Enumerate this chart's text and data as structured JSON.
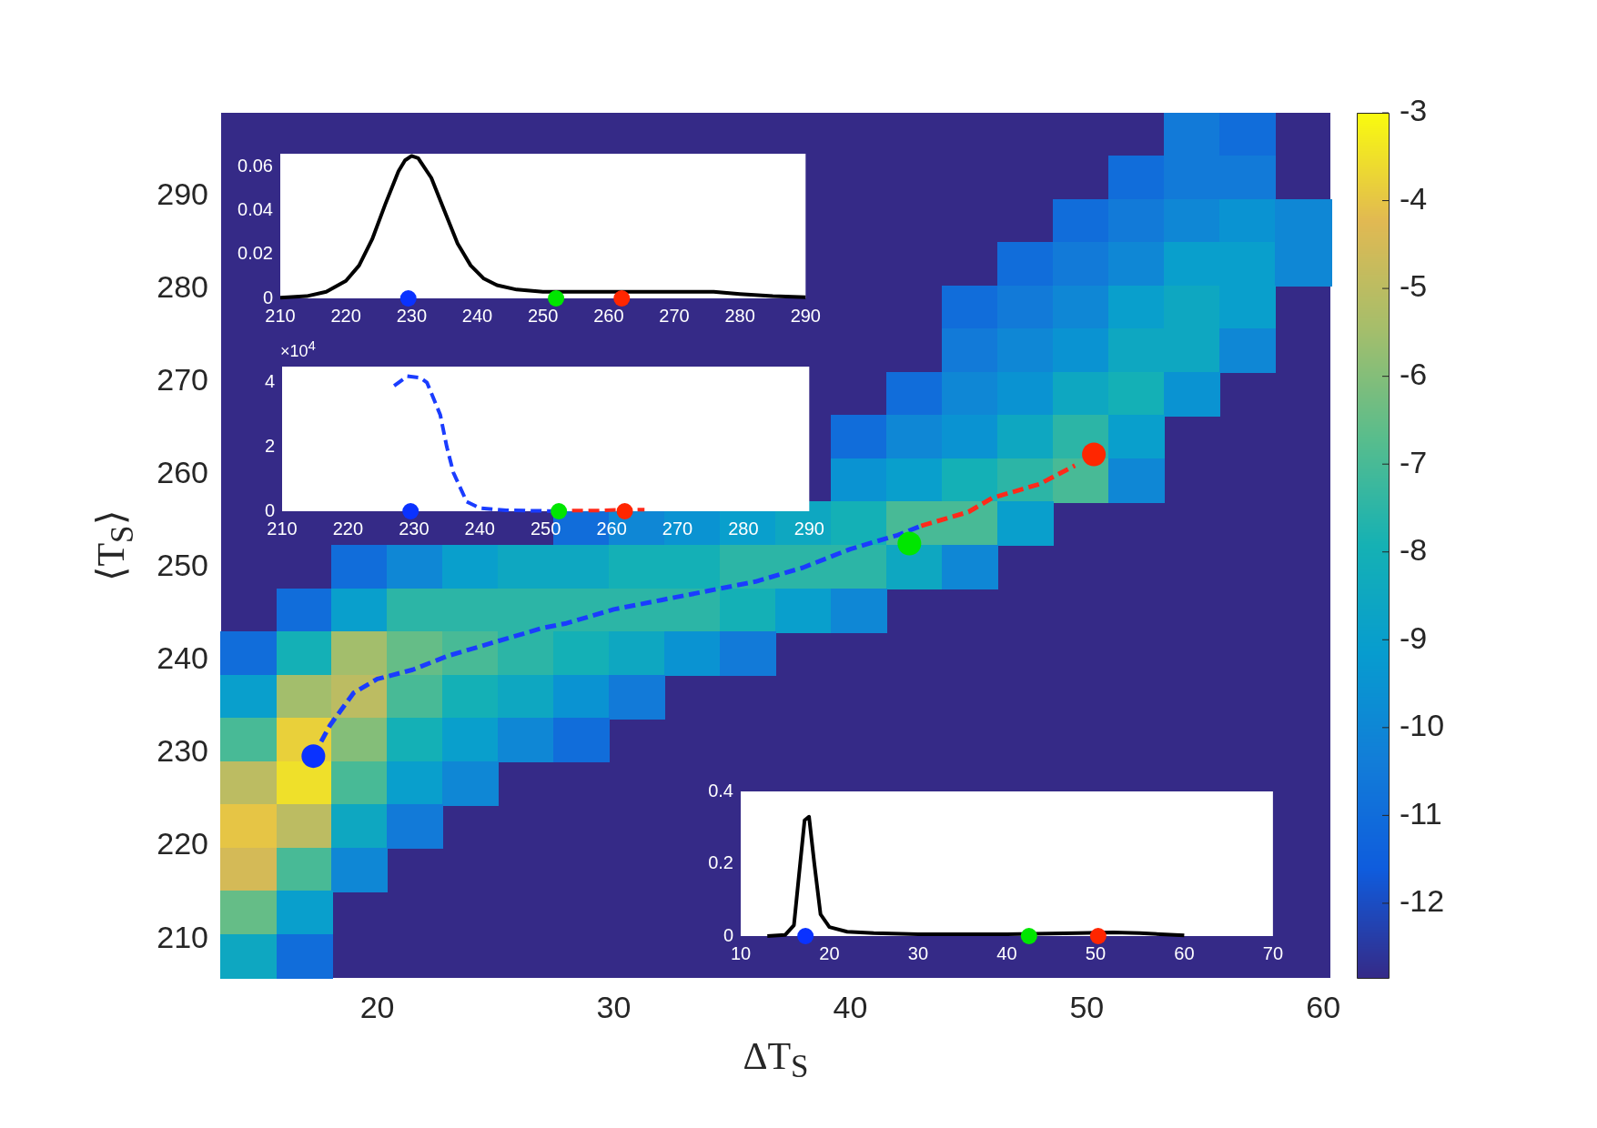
{
  "chart_data": [
    {
      "type": "heatmap",
      "xlabel": "ΔT$_{S}$",
      "ylabel": "⟨T$_{S}$⟩",
      "x": [
        14.57,
        16.92,
        19.26,
        21.61,
        23.95,
        26.3,
        28.64,
        30.99,
        33.33,
        35.68,
        38.02,
        40.37,
        42.71,
        45.06,
        47.4,
        49.75,
        52.09,
        54.44,
        56.78,
        59.13
      ],
      "y": [
        296.67,
        292.01,
        287.35,
        282.69,
        278.03,
        273.37,
        268.71,
        264.05,
        259.39,
        254.73,
        250.07,
        245.41,
        240.75,
        236.09,
        231.43,
        226.77,
        222.11,
        217.45,
        212.79,
        208.13
      ],
      "cells": [
        [
          null,
          null,
          null,
          null,
          null,
          null,
          null,
          null,
          null,
          null,
          null,
          null,
          null,
          null,
          null,
          null,
          null,
          -10.5,
          -11,
          null
        ],
        [
          null,
          null,
          null,
          null,
          null,
          null,
          null,
          null,
          null,
          null,
          null,
          null,
          null,
          null,
          null,
          null,
          -11,
          -10.5,
          -10.5,
          null
        ],
        [
          null,
          null,
          null,
          null,
          null,
          null,
          null,
          null,
          null,
          null,
          null,
          null,
          null,
          null,
          null,
          -11,
          -10.5,
          -10,
          -9.5,
          -10
        ],
        [
          null,
          null,
          null,
          null,
          null,
          null,
          null,
          null,
          null,
          null,
          null,
          null,
          null,
          null,
          -11,
          -10.5,
          -10,
          -9,
          -9,
          -10
        ],
        [
          null,
          null,
          null,
          null,
          null,
          null,
          null,
          null,
          null,
          null,
          null,
          null,
          null,
          -11,
          -10.5,
          -10,
          -9,
          -8.5,
          -9,
          null
        ],
        [
          null,
          null,
          null,
          null,
          null,
          null,
          null,
          null,
          null,
          null,
          null,
          null,
          null,
          -10.5,
          -10,
          -9.5,
          -8.5,
          -8.5,
          -10,
          null
        ],
        [
          null,
          null,
          null,
          null,
          null,
          null,
          null,
          null,
          null,
          null,
          null,
          null,
          -11,
          -10,
          -9.5,
          -8.5,
          -8,
          -9.5,
          null,
          null
        ],
        [
          null,
          null,
          null,
          null,
          null,
          null,
          null,
          null,
          null,
          null,
          null,
          -11,
          -10,
          -9.5,
          -8.5,
          -7.5,
          -9,
          null,
          null,
          null
        ],
        [
          null,
          null,
          null,
          null,
          null,
          null,
          null,
          null,
          null,
          null,
          null,
          -9.5,
          -9,
          -8,
          -7.5,
          -7,
          -10,
          null,
          null,
          null
        ],
        [
          null,
          null,
          null,
          null,
          null,
          null,
          -11,
          -10,
          -9.5,
          -9,
          -8.5,
          -8,
          -7,
          -7,
          -9,
          null,
          null,
          null,
          null,
          null
        ],
        [
          null,
          null,
          -11,
          -10,
          -9,
          -8.5,
          -8.5,
          -8,
          -8,
          -7.5,
          -7.5,
          -7.5,
          -8.5,
          -10,
          null,
          null,
          null,
          null,
          null,
          null
        ],
        [
          null,
          -11,
          -9,
          -7.5,
          -7.5,
          -7.5,
          -7.5,
          -7.5,
          -7.5,
          -8,
          -9,
          -10,
          null,
          null,
          null,
          null,
          null,
          null,
          null,
          null
        ],
        [
          -11,
          -8,
          -5.5,
          -6.5,
          -7,
          -7.5,
          -8,
          -8.5,
          -9.5,
          -10.5,
          null,
          null,
          null,
          null,
          null,
          null,
          null,
          null,
          null,
          null
        ],
        [
          -9,
          -5.5,
          -5,
          -7,
          -8,
          -8.5,
          -9.5,
          -10.5,
          null,
          null,
          null,
          null,
          null,
          null,
          null,
          null,
          null,
          null,
          null,
          null
        ],
        [
          -7,
          -3.8,
          -6,
          -8,
          -9,
          -10,
          -11,
          null,
          null,
          null,
          null,
          null,
          null,
          null,
          null,
          null,
          null,
          null,
          null,
          null
        ],
        [
          -5,
          -3.5,
          -7,
          -9,
          -10,
          null,
          null,
          null,
          null,
          null,
          null,
          null,
          null,
          null,
          null,
          null,
          null,
          null,
          null,
          null
        ],
        [
          -4,
          -5,
          -8.5,
          -10.5,
          null,
          null,
          null,
          null,
          null,
          null,
          null,
          null,
          null,
          null,
          null,
          null,
          null,
          null,
          null,
          null
        ],
        [
          -4.5,
          -7,
          -10,
          null,
          null,
          null,
          null,
          null,
          null,
          null,
          null,
          null,
          null,
          null,
          null,
          null,
          null,
          null,
          null,
          null
        ],
        [
          -6.5,
          -9,
          null,
          null,
          null,
          null,
          null,
          null,
          null,
          null,
          null,
          null,
          null,
          null,
          null,
          null,
          null,
          null,
          null,
          null
        ],
        [
          -8.5,
          -11,
          null,
          null,
          null,
          null,
          null,
          null,
          null,
          null,
          null,
          null,
          null,
          null,
          null,
          null,
          null,
          null,
          null,
          null
        ]
      ],
      "clim": [
        -12.85,
        -3
      ],
      "cticks": [
        -12,
        -11,
        -10,
        -9,
        -8,
        -7,
        -6,
        -5,
        -4,
        -3
      ],
      "xlim": [
        13.4,
        60.3
      ],
      "xticks": [
        20,
        30,
        40,
        50,
        60
      ],
      "ylim": [
        205.8,
        299
      ],
      "yticks": [
        210,
        220,
        230,
        240,
        250,
        260,
        270,
        280,
        290
      ],
      "series": [
        {
          "type": "line",
          "color": "#1a3cff",
          "line_style": "dashed",
          "x": [
            17.3,
            18,
            19,
            20,
            21.5,
            23,
            25,
            27,
            28,
            30,
            32,
            34,
            36,
            38,
            39,
            40,
            42,
            43
          ],
          "values": [
            229.7,
            233,
            236.5,
            238,
            239,
            240.5,
            242,
            243.5,
            244,
            245.5,
            246.5,
            247.5,
            248.5,
            250,
            251,
            252,
            253.5,
            254.5
          ]
        },
        {
          "type": "line",
          "color": "#ff2a1a",
          "line_style": "dashed",
          "x": [
            43,
            45,
            46,
            48,
            49.5
          ],
          "values": [
            254.5,
            256,
            257.5,
            259,
            261
          ]
        },
        {
          "type": "scatter",
          "marker": "circle",
          "colors": [
            "#0a32ff",
            "#00e600",
            "#ff2600"
          ],
          "x": [
            17.3,
            42.5,
            50.3
          ],
          "values": [
            229.7,
            252.6,
            262.2
          ]
        }
      ]
    },
    {
      "type": "line",
      "xlim": [
        210,
        290
      ],
      "xticks": [
        210,
        220,
        230,
        240,
        250,
        260,
        270,
        280,
        290
      ],
      "ylim": [
        0,
        0.066
      ],
      "yticks": [
        0,
        0.02,
        0.04,
        0.06
      ],
      "series": [
        {
          "color": "#000000",
          "x": [
            210,
            214,
            217,
            220,
            222,
            224,
            226,
            228,
            229,
            230,
            231,
            233,
            235,
            237,
            239,
            241,
            243,
            246,
            250,
            255,
            260,
            270,
            276,
            280,
            285,
            290
          ],
          "values": [
            0.0003,
            0.001,
            0.003,
            0.008,
            0.015,
            0.027,
            0.043,
            0.058,
            0.063,
            0.065,
            0.064,
            0.055,
            0.04,
            0.025,
            0.015,
            0.009,
            0.006,
            0.004,
            0.003,
            0.003,
            0.003,
            0.003,
            0.003,
            0.002,
            0.001,
            0.0005
          ]
        },
        {
          "type": "scatter",
          "marker": "circle",
          "colors": [
            "#0a32ff",
            "#00e600",
            "#ff2600"
          ],
          "x": [
            229.5,
            252,
            262
          ],
          "values": [
            0,
            0,
            0
          ]
        }
      ]
    },
    {
      "type": "line",
      "xlim": [
        210,
        290
      ],
      "xticks": [
        210,
        220,
        230,
        240,
        250,
        260,
        270,
        280,
        290
      ],
      "ylim": [
        0,
        4.5
      ],
      "yticks": [
        0,
        2,
        4
      ],
      "annotations": [
        "×10$^{4}$"
      ],
      "series": [
        {
          "color": "#1a3cff",
          "line_style": "dashed",
          "x": [
            227,
            229,
            231,
            232,
            234,
            235,
            236,
            238,
            240,
            244,
            250,
            252
          ],
          "values": [
            3.9,
            4.2,
            4.15,
            4,
            3,
            2,
            1.2,
            0.3,
            0.1,
            0.03,
            0.01,
            0
          ]
        },
        {
          "color": "#ff2a1a",
          "line_style": "dashed",
          "x": [
            254,
            258,
            262,
            265
          ],
          "values": [
            0.02,
            0.02,
            0.05,
            0.05
          ]
        },
        {
          "type": "scatter",
          "marker": "circle",
          "colors": [
            "#0a32ff",
            "#00e600",
            "#ff2600"
          ],
          "x": [
            229.5,
            252,
            262
          ],
          "values": [
            0,
            0,
            0
          ]
        }
      ]
    },
    {
      "type": "line",
      "xlim": [
        10,
        70
      ],
      "xticks": [
        10,
        20,
        30,
        40,
        50,
        60,
        70
      ],
      "ylim": [
        0,
        0.4
      ],
      "yticks": [
        0,
        0.2,
        0.4
      ],
      "series": [
        {
          "color": "#000000",
          "x": [
            13,
            15,
            16,
            16.7,
            17.2,
            17.7,
            18.3,
            19,
            20,
            22,
            25,
            30,
            40,
            48,
            52,
            55,
            60
          ],
          "values": [
            0,
            0.003,
            0.03,
            0.2,
            0.32,
            0.33,
            0.2,
            0.06,
            0.025,
            0.012,
            0.008,
            0.005,
            0.005,
            0.008,
            0.01,
            0.008,
            0.002
          ]
        },
        {
          "type": "scatter",
          "marker": "circle",
          "colors": [
            "#0a32ff",
            "#00e600",
            "#ff2600"
          ],
          "x": [
            17.3,
            42.5,
            50.3
          ],
          "values": [
            0,
            0,
            0
          ]
        }
      ]
    }
  ]
}
